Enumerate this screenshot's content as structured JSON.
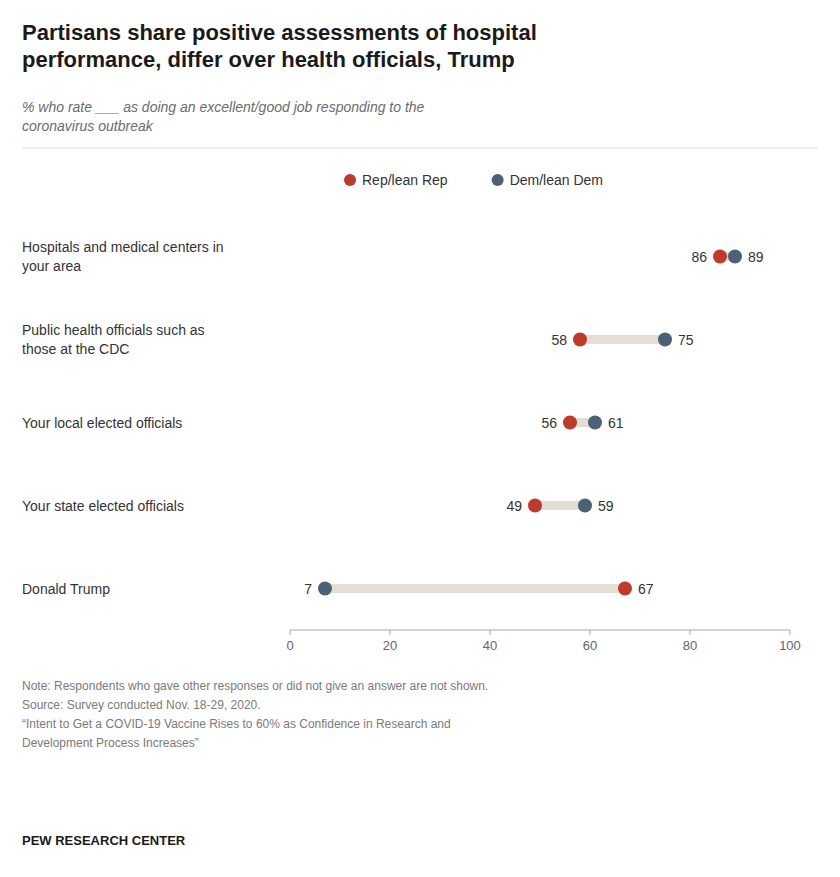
{
  "chart_data": {
    "type": "dumbbell",
    "title": "Partisans share positive assessments of hospital\nperformance, differ over health officials, Trump",
    "subtitle": "% who rate ___ as doing an excellent/good job responding to the\ncoronavirus outbreak",
    "categories": [
      "Hospitals and medical centers in\nyour area",
      "Public health officials such as\nthose at the CDC",
      "Your local elected officials",
      "Your state elected officials",
      "Donald Trump"
    ],
    "series": [
      {
        "name": "Rep/lean Rep",
        "color": "#c0392b",
        "values": [
          86,
          58,
          56,
          49,
          67
        ]
      },
      {
        "name": "Dem/lean Dem",
        "color": "#4a6274",
        "values": [
          89,
          75,
          61,
          59,
          7
        ]
      }
    ],
    "xlim": [
      0,
      100
    ],
    "xticks": [
      0,
      20,
      40,
      60,
      80,
      100
    ],
    "grid": false,
    "legend": "top",
    "data_labels": true,
    "annotations": [
      "Note: Respondents who gave other responses or did not give an answer are not shown.\nSource: Survey conducted Nov. 18-29, 2020.\n“Intent to Get a COVID-19 Vaccine Rises to 60% as Confidence in Research and\nDevelopment Process Increases”",
      "PEW RESEARCH CENTER"
    ]
  }
}
